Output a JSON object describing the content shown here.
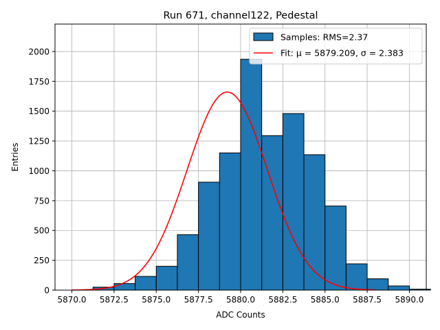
{
  "chart_data": {
    "type": "bar",
    "title": "Run 671, channel122, Pedestal",
    "xlabel": "ADC Counts",
    "ylabel": "Entries",
    "xlim": [
      5869.0,
      5891.0
    ],
    "ylim": [
      0,
      2230
    ],
    "grid": true,
    "legend_position": "top-right",
    "xticks": [
      {
        "value": 5870.0,
        "label": "5870.0"
      },
      {
        "value": 5872.5,
        "label": "5872.5"
      },
      {
        "value": 5875.0,
        "label": "5875.0"
      },
      {
        "value": 5877.5,
        "label": "5877.5"
      },
      {
        "value": 5880.0,
        "label": "5880.0"
      },
      {
        "value": 5882.5,
        "label": "5882.5"
      },
      {
        "value": 5885.0,
        "label": "5885.0"
      },
      {
        "value": 5887.5,
        "label": "5887.5"
      },
      {
        "value": 5890.0,
        "label": "5890.0"
      }
    ],
    "yticks": [
      {
        "value": 0,
        "label": "0"
      },
      {
        "value": 250,
        "label": "250"
      },
      {
        "value": 500,
        "label": "500"
      },
      {
        "value": 750,
        "label": "750"
      },
      {
        "value": 1000,
        "label": "1000"
      },
      {
        "value": 1250,
        "label": "1250"
      },
      {
        "value": 1500,
        "label": "1500"
      },
      {
        "value": 1750,
        "label": "1750"
      },
      {
        "value": 2000,
        "label": "2000"
      }
    ],
    "histogram": {
      "name": "Samples: RMS=2.37",
      "color": "#1f77b4",
      "bins": [
        {
          "x0": 5871.25,
          "x1": 5872.5,
          "count": 25
        },
        {
          "x0": 5872.5,
          "x1": 5873.75,
          "count": 55
        },
        {
          "x0": 5873.75,
          "x1": 5875.0,
          "count": 115
        },
        {
          "x0": 5875.0,
          "x1": 5876.25,
          "count": 200
        },
        {
          "x0": 5876.25,
          "x1": 5877.5,
          "count": 465
        },
        {
          "x0": 5877.5,
          "x1": 5878.75,
          "count": 905
        },
        {
          "x0": 5878.75,
          "x1": 5880.0,
          "count": 1150
        },
        {
          "x0": 5880.0,
          "x1": 5881.25,
          "count": 1935
        },
        {
          "x0": 5881.25,
          "x1": 5882.5,
          "count": 1295
        },
        {
          "x0": 5882.5,
          "x1": 5883.75,
          "count": 1480
        },
        {
          "x0": 5883.75,
          "x1": 5885.0,
          "count": 1135
        },
        {
          "x0": 5885.0,
          "x1": 5886.25,
          "count": 705
        },
        {
          "x0": 5886.25,
          "x1": 5887.5,
          "count": 220
        },
        {
          "x0": 5887.5,
          "x1": 5888.75,
          "count": 95
        },
        {
          "x0": 5888.75,
          "x1": 5890.0,
          "count": 35
        },
        {
          "x0": 5890.0,
          "x1": 5891.25,
          "count": 8
        }
      ]
    },
    "fit": {
      "name": "Fit: μ = 5879.209, σ = 2.383",
      "color": "#ff0000",
      "mu": 5879.209,
      "sigma": 2.383,
      "amplitude": 1660,
      "x_range": [
        5870.0,
        5888.0
      ]
    }
  }
}
